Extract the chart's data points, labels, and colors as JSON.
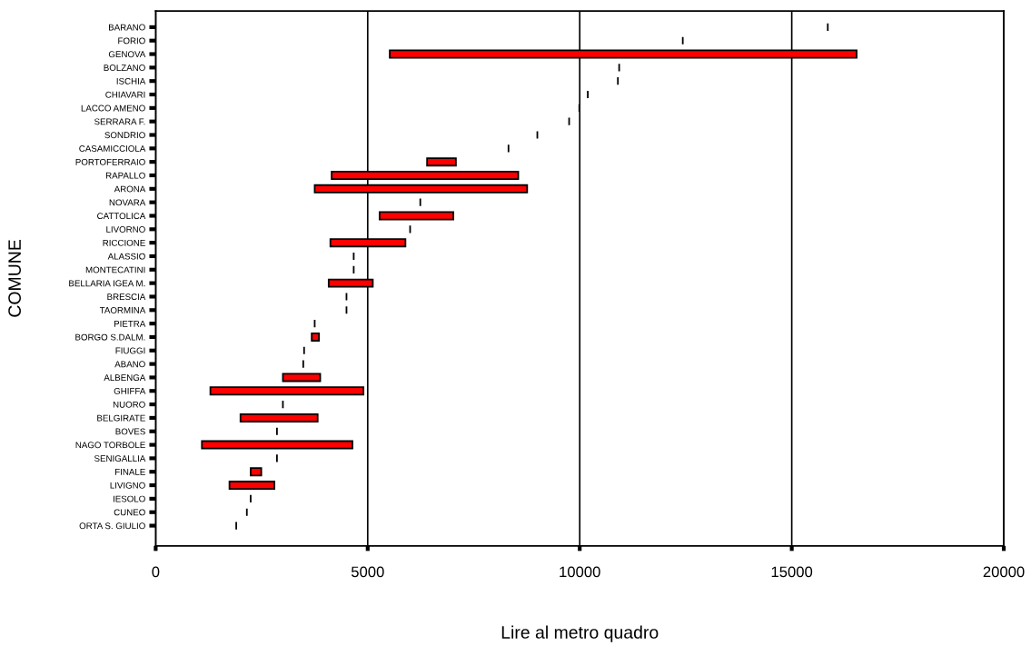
{
  "chart_data": {
    "type": "bar",
    "orientation": "horizontal",
    "xlabel": "Lire al metro quadro",
    "ylabel": "COMUNE",
    "categories": [
      "BARANO",
      "FORIO",
      "GENOVA",
      "BOLZANO",
      "ISCHIA",
      "CHIAVARI",
      "LACCO AMENO",
      "SERRARA F.",
      "SONDRIO",
      "CASAMICCIOLA",
      "PORTOFERRAIO",
      "RAPALLO",
      "ARONA",
      "NOVARA",
      "CATTOLICA",
      "LIVORNO",
      "RICCIONE",
      "ALASSIO",
      "MONTECATINI",
      "BELLARIA IGEA M.",
      "BRESCIA",
      "TAORMINA",
      "PIETRA",
      "BORGO S.DALM.",
      "FIUGGI",
      "ABANO",
      "ALBENGA",
      "GHIFFA",
      "NUORO",
      "BELGIRATE",
      "BOVES",
      "NAGO TORBOLE",
      "SENIGALLIA",
      "FINALE",
      "LIVIGNO",
      "IESOLO",
      "CUNEO",
      "ORTA S. GIULIO"
    ],
    "base": [
      15850,
      12430,
      5520,
      10930,
      10900,
      10190,
      9990,
      9750,
      9000,
      8320,
      6400,
      4150,
      3750,
      6240,
      5280,
      6000,
      4120,
      4670,
      4670,
      4080,
      4500,
      4500,
      3750,
      3680,
      3500,
      3480,
      3000,
      1290,
      3000,
      2000,
      2860,
      1090,
      2860,
      2240,
      1740,
      2240,
      2150,
      1900
    ],
    "values": [
      0,
      0,
      11010,
      0,
      0,
      0,
      0,
      0,
      0,
      0,
      680,
      4400,
      5010,
      0,
      1740,
      0,
      1770,
      0,
      0,
      1040,
      0,
      0,
      0,
      170,
      0,
      0,
      880,
      3610,
      0,
      1820,
      0,
      3550,
      0,
      250,
      1060,
      0,
      0,
      0
    ],
    "colors": [
      "#000000",
      "#000000",
      "#ff0000",
      "#000000",
      "#000000",
      "#000000",
      "#000000",
      "#000000",
      "#000000",
      "#000000",
      "#ff0000",
      "#ff0000",
      "#ff0000",
      "#000000",
      "#ff0000",
      "#000000",
      "#ff0000",
      "#000000",
      "#000000",
      "#ff0000",
      "#000000",
      "#000000",
      "#000000",
      "#ff0000",
      "#000000",
      "#000000",
      "#ff0000",
      "#ff0000",
      "#000000",
      "#ff0000",
      "#000000",
      "#ff0000",
      "#000000",
      "#ff0000",
      "#ff0000",
      "#000000",
      "#000000",
      "#000000"
    ],
    "xlim": [
      0,
      20000
    ],
    "xticks": [
      0,
      5000,
      10000,
      15000,
      20000
    ],
    "grid": "x"
  }
}
